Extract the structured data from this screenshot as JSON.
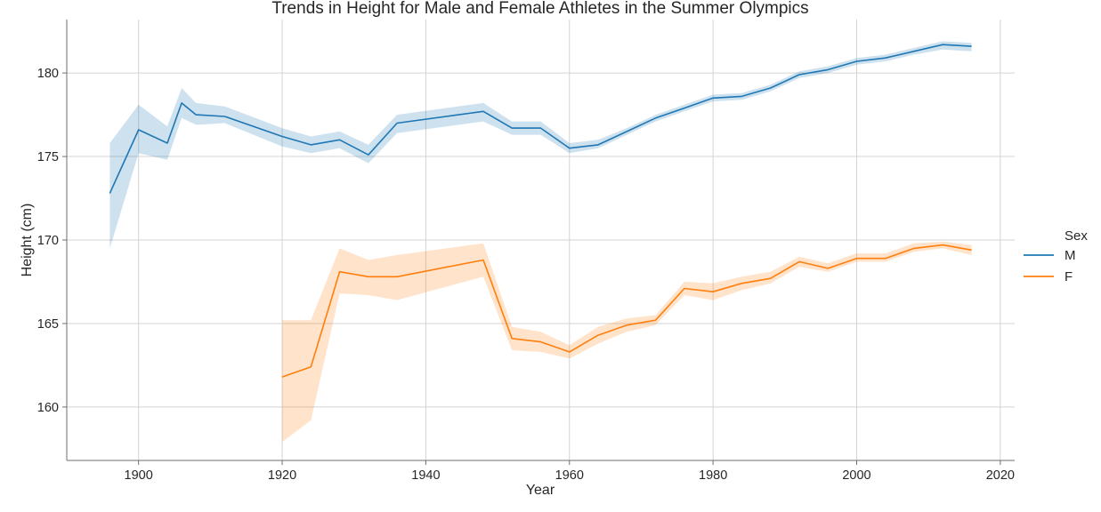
{
  "chart_data": {
    "type": "line",
    "title": "Trends in Height for Male and Female Athletes in the Summer Olympics",
    "xlabel": "Year",
    "ylabel": "Height (cm)",
    "xlim": [
      1890,
      2022
    ],
    "ylim": [
      156.8,
      183.2
    ],
    "xticks": [
      1900,
      1920,
      1940,
      1960,
      1980,
      2000,
      2020
    ],
    "yticks": [
      160,
      165,
      170,
      175,
      180
    ],
    "grid": true,
    "legend": {
      "title": "Sex",
      "placement": "right"
    },
    "series": [
      {
        "name": "M",
        "color": "#1f77b4",
        "x": [
          1896,
          1900,
          1904,
          1906,
          1908,
          1912,
          1920,
          1924,
          1928,
          1932,
          1936,
          1948,
          1952,
          1956,
          1960,
          1964,
          1968,
          1972,
          1976,
          1980,
          1984,
          1988,
          1992,
          1996,
          2000,
          2004,
          2008,
          2012,
          2016
        ],
        "y": [
          172.8,
          176.6,
          175.8,
          178.2,
          177.5,
          177.4,
          176.2,
          175.7,
          176.0,
          175.1,
          177.0,
          177.7,
          176.7,
          176.7,
          175.5,
          175.7,
          176.5,
          177.3,
          177.9,
          178.5,
          178.6,
          179.1,
          179.9,
          180.2,
          180.7,
          180.9,
          181.3,
          181.7,
          181.6
        ],
        "ci_low": [
          169.5,
          175.2,
          174.8,
          177.3,
          176.9,
          177.0,
          175.6,
          175.2,
          175.5,
          174.6,
          176.4,
          177.1,
          176.3,
          176.3,
          175.2,
          175.5,
          176.3,
          177.1,
          177.7,
          178.3,
          178.4,
          178.9,
          179.7,
          180.0,
          180.5,
          180.7,
          181.1,
          181.4,
          181.3
        ],
        "ci_high": [
          175.8,
          178.1,
          176.8,
          179.1,
          178.2,
          178.0,
          176.7,
          176.2,
          176.5,
          175.7,
          177.5,
          178.2,
          177.1,
          177.1,
          175.8,
          176.0,
          176.7,
          177.5,
          178.1,
          178.7,
          178.8,
          179.3,
          180.1,
          180.4,
          180.9,
          181.1,
          181.5,
          181.9,
          181.8
        ]
      },
      {
        "name": "F",
        "color": "#ff7f0e",
        "x": [
          1920,
          1924,
          1928,
          1932,
          1936,
          1948,
          1952,
          1956,
          1960,
          1964,
          1968,
          1972,
          1976,
          1980,
          1984,
          1988,
          1992,
          1996,
          2000,
          2004,
          2008,
          2012,
          2016
        ],
        "y": [
          161.8,
          162.4,
          168.1,
          167.8,
          167.8,
          168.8,
          164.1,
          163.9,
          163.3,
          164.3,
          164.9,
          165.2,
          167.1,
          166.9,
          167.4,
          167.7,
          168.7,
          168.3,
          168.9,
          168.9,
          169.5,
          169.7,
          169.4
        ],
        "ci_low": [
          157.9,
          159.2,
          166.8,
          166.7,
          166.4,
          167.8,
          163.4,
          163.3,
          162.9,
          163.8,
          164.5,
          164.9,
          166.7,
          166.4,
          167.0,
          167.4,
          168.4,
          168.1,
          168.7,
          168.7,
          169.3,
          169.5,
          169.1
        ],
        "ci_high": [
          165.2,
          165.2,
          169.5,
          168.8,
          169.1,
          169.8,
          164.8,
          164.5,
          163.7,
          164.8,
          165.3,
          165.5,
          167.5,
          167.4,
          167.8,
          168.1,
          169.0,
          168.6,
          169.2,
          169.2,
          169.8,
          169.9,
          169.7
        ]
      }
    ]
  }
}
